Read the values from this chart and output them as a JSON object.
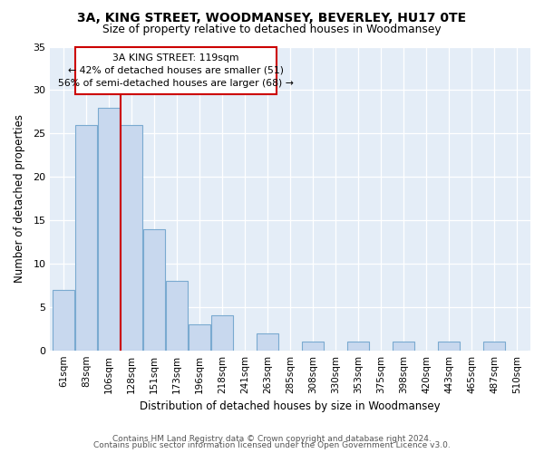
{
  "title1": "3A, KING STREET, WOODMANSEY, BEVERLEY, HU17 0TE",
  "title2": "Size of property relative to detached houses in Woodmansey",
  "xlabel": "Distribution of detached houses by size in Woodmansey",
  "ylabel": "Number of detached properties",
  "categories": [
    "61sqm",
    "83sqm",
    "106sqm",
    "128sqm",
    "151sqm",
    "173sqm",
    "196sqm",
    "218sqm",
    "241sqm",
    "263sqm",
    "285sqm",
    "308sqm",
    "330sqm",
    "353sqm",
    "375sqm",
    "398sqm",
    "420sqm",
    "443sqm",
    "465sqm",
    "487sqm",
    "510sqm"
  ],
  "values": [
    7,
    26,
    28,
    26,
    14,
    8,
    3,
    4,
    0,
    2,
    0,
    1,
    0,
    1,
    0,
    1,
    0,
    1,
    0,
    1,
    0
  ],
  "bar_color": "#c8d8ee",
  "bar_edgecolor": "#7aaad0",
  "vline_x": 2.5,
  "annotation_line1": "3A KING STREET: 119sqm",
  "annotation_line2": "← 42% of detached houses are smaller (51)",
  "annotation_line3": "56% of semi-detached houses are larger (68) →",
  "annotation_box_facecolor": "#ffffff",
  "annotation_box_edgecolor": "#cc0000",
  "vline_color": "#cc0000",
  "ylim": [
    0,
    35
  ],
  "yticks": [
    0,
    5,
    10,
    15,
    20,
    25,
    30,
    35
  ],
  "footer1": "Contains HM Land Registry data © Crown copyright and database right 2024.",
  "footer2": "Contains public sector information licensed under the Open Government Licence v3.0.",
  "fig_facecolor": "#ffffff",
  "plot_bg_color": "#e4edf7"
}
